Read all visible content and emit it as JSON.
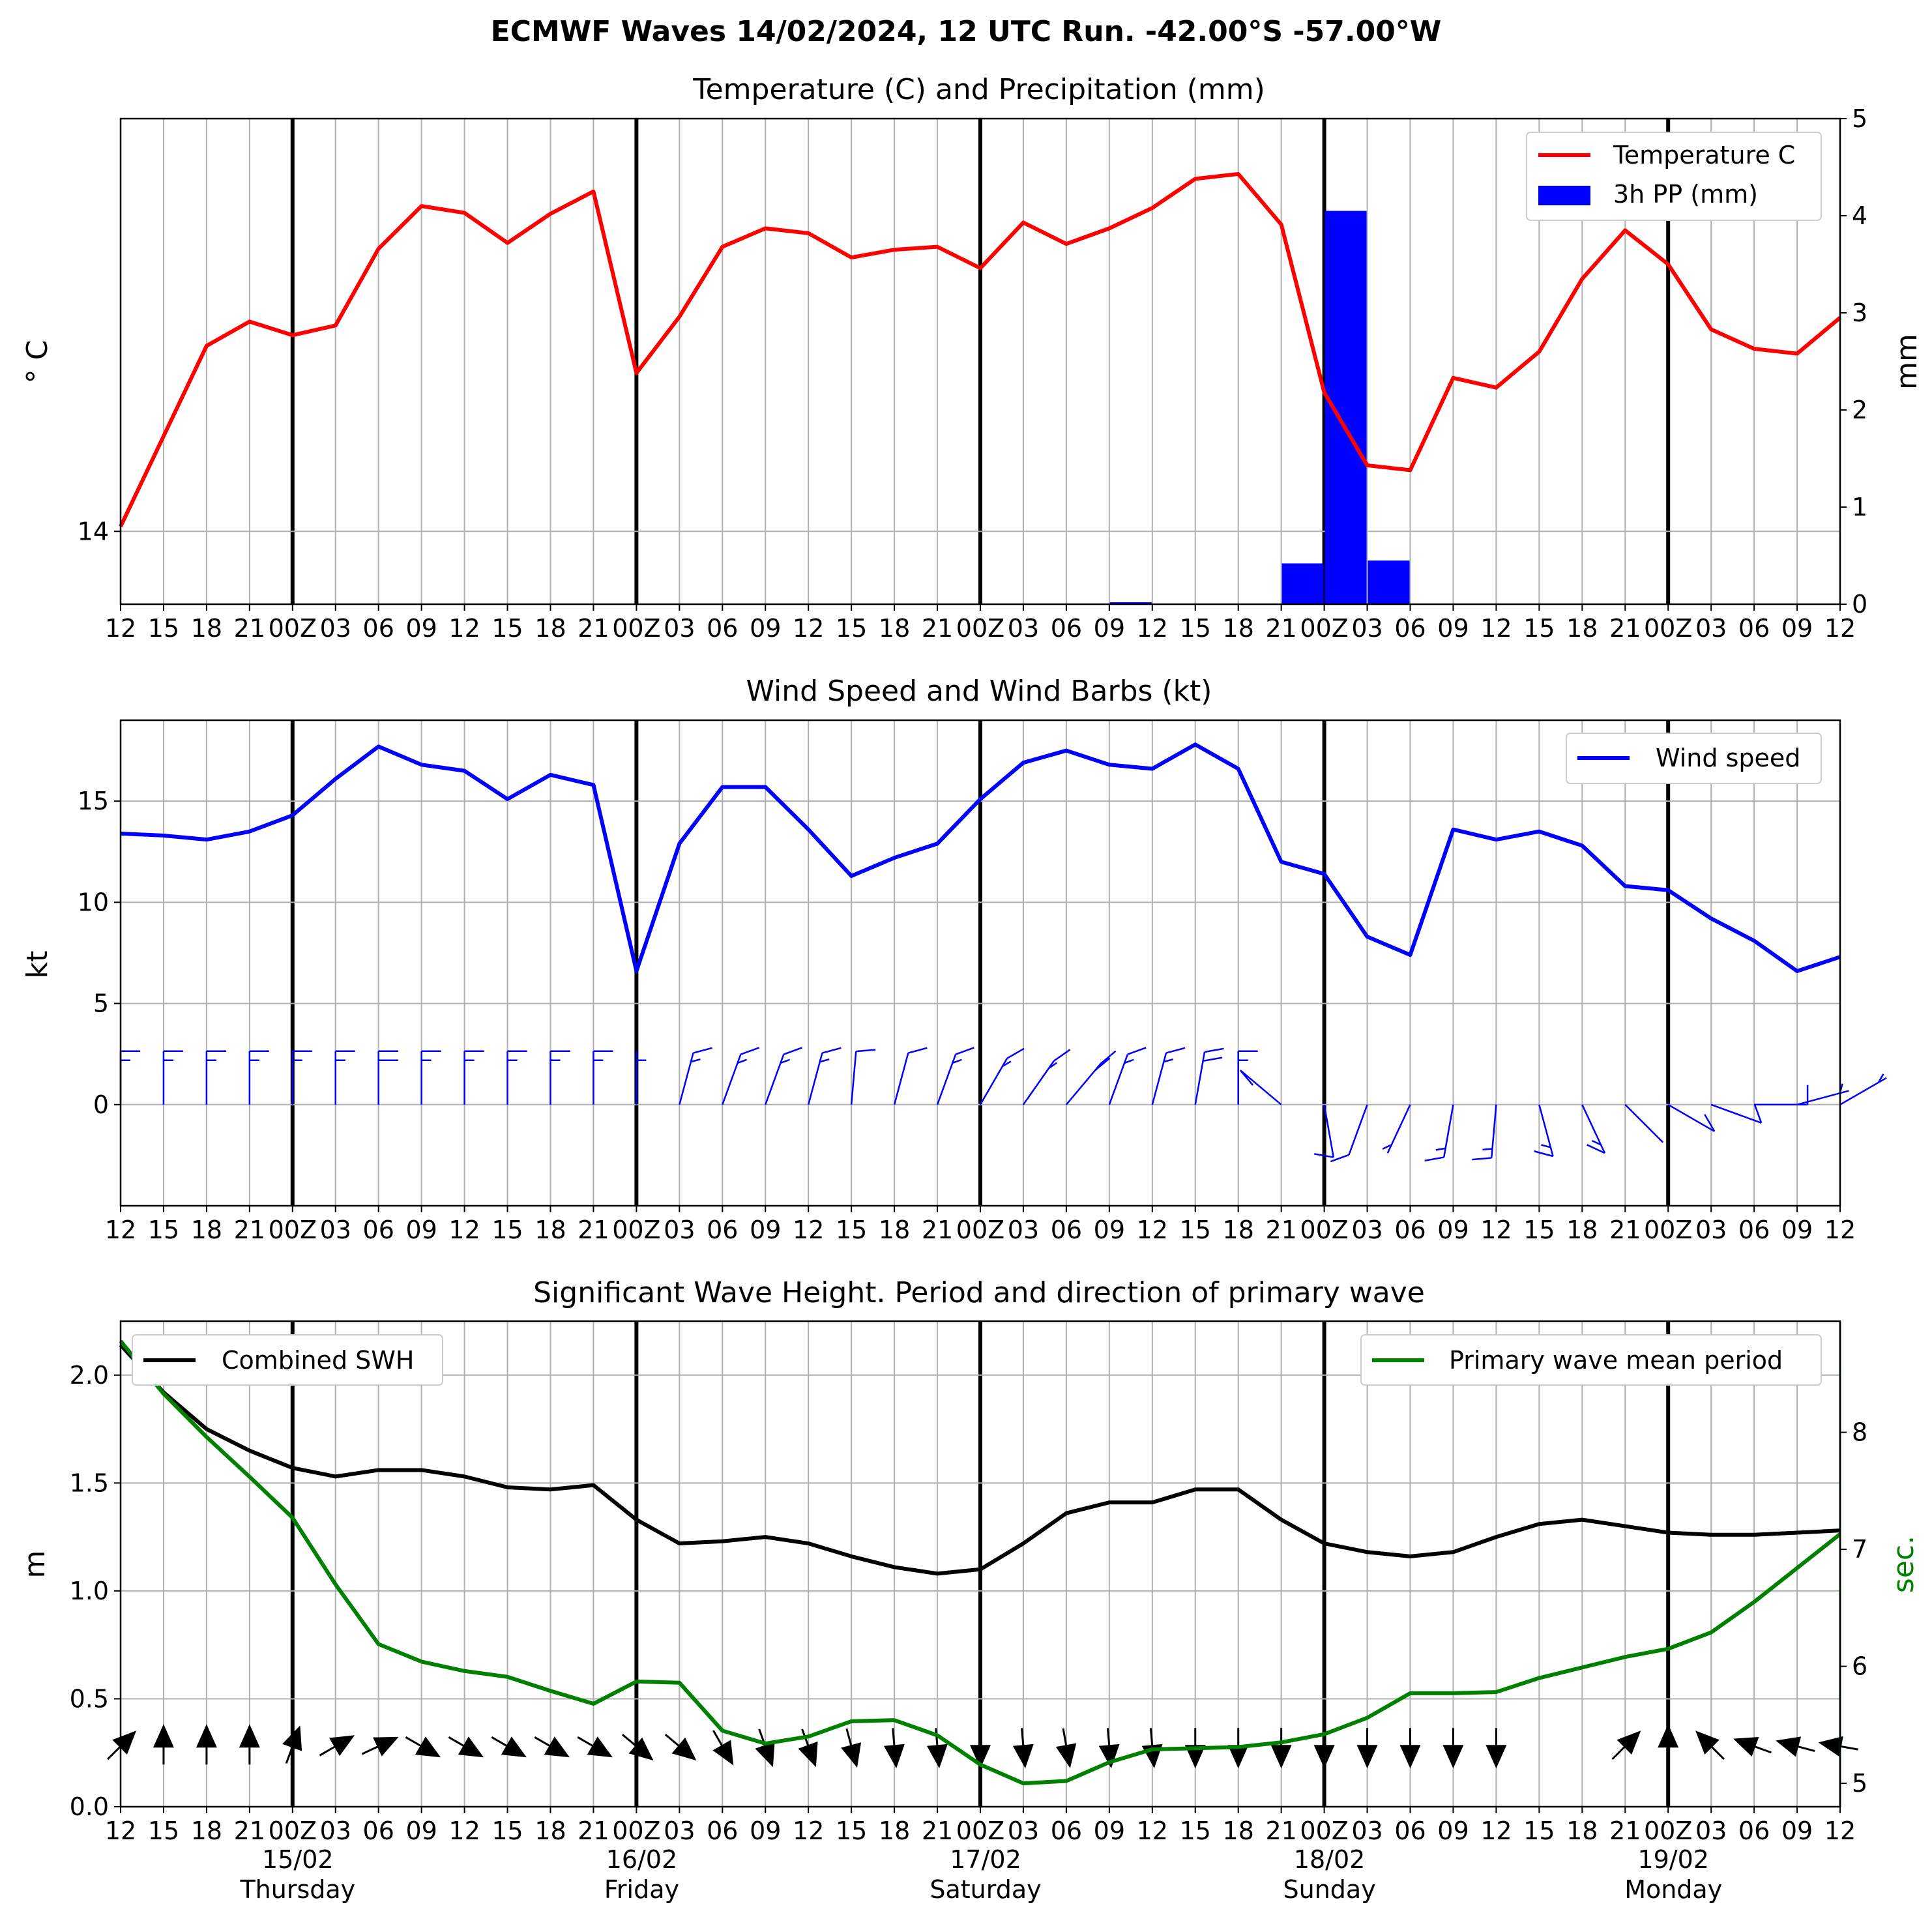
{
  "suptitle": "ECMWF Waves 14/02/2024, 12 UTC Run. -42.00°S -57.00°W",
  "x_tick_labels": [
    "12",
    "15",
    "18",
    "21",
    "00Z",
    "03",
    "06",
    "09",
    "12",
    "15",
    "18",
    "21",
    "00Z",
    "03",
    "06",
    "09",
    "12",
    "15",
    "18",
    "21",
    "00Z",
    "03",
    "06",
    "09",
    "12",
    "15",
    "18",
    "21",
    "00Z",
    "03",
    "06",
    "09",
    "12",
    "15",
    "18",
    "21",
    "00Z",
    "03",
    "06",
    "09",
    "12"
  ],
  "date_labels": [
    {
      "date": "15/02",
      "day": "Thursday",
      "index": 4
    },
    {
      "date": "16/02",
      "day": "Friday",
      "index": 12
    },
    {
      "date": "17/02",
      "day": "Saturday",
      "index": 20
    },
    {
      "date": "18/02",
      "day": "Sunday",
      "index": 28
    },
    {
      "date": "19/02",
      "day": "Monday",
      "index": 36
    }
  ],
  "colors": {
    "temperature": "#ff0000",
    "precip": "#0000ff",
    "wind": "#0000ff",
    "swh": "#000000",
    "period": "#008000",
    "grid": "#b0b0b0"
  },
  "chart_data": [
    {
      "type": "line",
      "title": "Temperature (C) and Precipitation (mm)",
      "ylabel": "° C",
      "y2label": "mm",
      "ylim": [
        13.25,
        18.25
      ],
      "yticks": [
        14
      ],
      "y2lim": [
        0,
        5
      ],
      "y2ticks": [
        0,
        1,
        2,
        3,
        4,
        5
      ],
      "legend_position": "top-right",
      "series": [
        {
          "name": "Temperature C",
          "axis": "left",
          "values": [
            14.05,
            14.98,
            15.91,
            16.16,
            16.02,
            16.12,
            16.91,
            17.35,
            17.28,
            16.97,
            17.27,
            17.5,
            15.63,
            16.21,
            16.93,
            17.12,
            17.07,
            16.82,
            16.9,
            16.93,
            16.71,
            17.18,
            16.96,
            17.12,
            17.33,
            17.63,
            17.68,
            17.16,
            15.43,
            14.68,
            14.63,
            15.58,
            15.48,
            15.85,
            16.6,
            17.1,
            16.75,
            16.08,
            15.88,
            15.83,
            16.2
          ]
        },
        {
          "name": "3h PP (mm)",
          "axis": "right",
          "type": "bar",
          "values": [
            0,
            0,
            0,
            0,
            0,
            0,
            0,
            0,
            0,
            0,
            0,
            0,
            0,
            0,
            0,
            0,
            0,
            0,
            0,
            0,
            0,
            0,
            0,
            0.02,
            0,
            0,
            0,
            0.42,
            4.05,
            0.45,
            0,
            0,
            0,
            0,
            0,
            0,
            0,
            0,
            0,
            0
          ]
        }
      ],
      "grid": true
    },
    {
      "type": "line",
      "title": "Wind Speed and Wind Barbs (kt)",
      "ylabel": "kt",
      "ylim": [
        -5,
        19
      ],
      "yticks": [
        0,
        5,
        10,
        15
      ],
      "legend_position": "top-right",
      "series": [
        {
          "name": "Wind speed",
          "values": [
            13.4,
            13.3,
            13.1,
            13.5,
            14.3,
            16.1,
            17.7,
            16.8,
            16.5,
            15.1,
            16.3,
            15.8,
            6.6,
            12.9,
            15.7,
            15.7,
            13.6,
            11.3,
            12.2,
            12.9,
            15.1,
            16.9,
            17.5,
            16.8,
            16.6,
            17.8,
            16.6,
            12.0,
            11.4,
            8.3,
            7.4,
            13.6,
            13.1,
            13.5,
            12.8,
            10.8,
            10.6,
            9.2,
            8.1,
            6.6,
            7.3
          ]
        },
        {
          "name": "barbs",
          "type": "barb",
          "speed": "same as wind",
          "dir_to_deg": [
            180,
            180,
            180,
            180,
            180,
            180,
            180,
            180,
            180,
            180,
            180,
            180,
            180,
            195,
            200,
            200,
            195,
            185,
            195,
            200,
            210,
            215,
            220,
            200,
            195,
            190,
            180,
            130,
            350,
            20,
            25,
            10,
            5,
            345,
            335,
            315,
            300,
            290,
            270,
            255,
            240
          ]
        }
      ],
      "grid": true
    },
    {
      "type": "line",
      "title": "Significant Wave Height. Period and direction of primary wave",
      "ylabel": "m",
      "y2label": "sec.",
      "ylim": [
        0,
        2.25
      ],
      "yticks": [
        0.0,
        0.5,
        1.0,
        1.5,
        2.0
      ],
      "y2lim": [
        4.8,
        8.95
      ],
      "y2ticks": [
        5,
        6,
        7,
        8
      ],
      "series": [
        {
          "name": "Combined SWH",
          "axis": "left",
          "legend_position": "top-left",
          "values": [
            2.14,
            1.92,
            1.75,
            1.65,
            1.57,
            1.53,
            1.56,
            1.56,
            1.53,
            1.48,
            1.47,
            1.49,
            1.33,
            1.22,
            1.23,
            1.25,
            1.22,
            1.16,
            1.11,
            1.08,
            1.1,
            1.22,
            1.36,
            1.41,
            1.41,
            1.47,
            1.47,
            1.33,
            1.22,
            1.18,
            1.16,
            1.18,
            1.25,
            1.31,
            1.33,
            1.3,
            1.27,
            1.26,
            1.26,
            1.27,
            1.28
          ]
        },
        {
          "name": "Primary wave mean period",
          "axis": "right",
          "legend_position": "top-right",
          "values": [
            8.78,
            8.33,
            7.96,
            7.62,
            7.27,
            6.7,
            6.19,
            6.04,
            5.96,
            5.91,
            5.79,
            5.68,
            5.87,
            5.86,
            5.45,
            5.34,
            5.4,
            5.53,
            5.54,
            5.41,
            5.16,
            5.0,
            5.02,
            5.18,
            5.29,
            5.3,
            5.31,
            5.35,
            5.42,
            5.56,
            5.77,
            5.77,
            5.78,
            5.9,
            5.99,
            6.08,
            6.15,
            6.29,
            6.55,
            6.84,
            7.13
          ]
        },
        {
          "name": "wave direction arrows",
          "type": "arrow",
          "dir_to_deg": [
            45,
            0,
            0,
            0,
            20,
            60,
            65,
            120,
            120,
            120,
            120,
            120,
            130,
            130,
            150,
            160,
            160,
            165,
            175,
            175,
            180,
            175,
            170,
            175,
            175,
            180,
            180,
            180,
            180,
            180,
            180,
            180,
            180,
            null,
            null,
            45,
            0,
            315,
            290,
            285,
            280
          ]
        }
      ],
      "grid": true
    }
  ]
}
